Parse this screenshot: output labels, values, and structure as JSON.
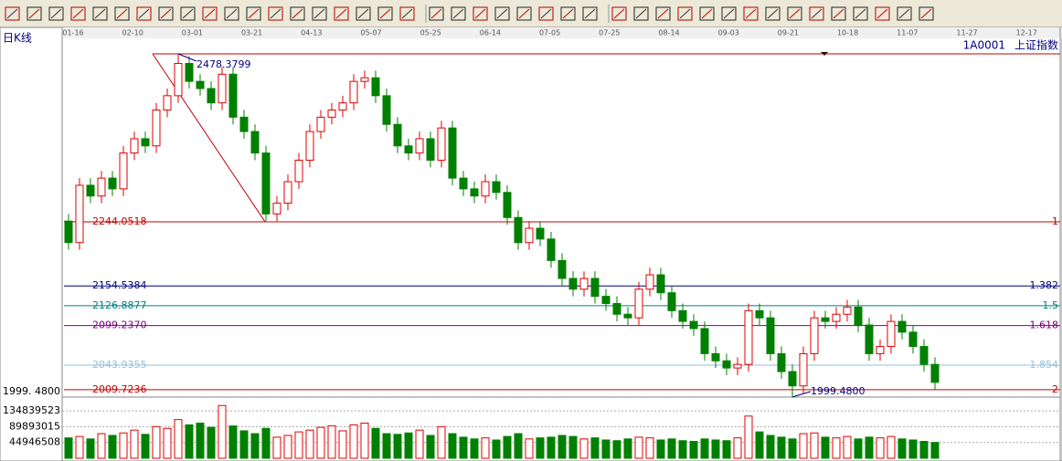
{
  "window": {
    "period": "日K线",
    "code": "1A0001",
    "name": "上证指数"
  },
  "chart_data": {
    "type": "candlestick",
    "dates": [
      "01-16",
      "02-10",
      "03-01",
      "03-21",
      "04-13",
      "05-07",
      "05-25",
      "06-14",
      "07-05",
      "07-25",
      "08-14",
      "09-03",
      "09-21",
      "10-18",
      "11-07",
      "11-27",
      "12-17"
    ],
    "up_color": "#e00000",
    "down_color": "#008000",
    "ylim": [
      1993,
      2483.5
    ],
    "yticks": [
      {
        "value": 1999.48,
        "label": "1999. 4800"
      }
    ],
    "open": [
      2245,
      2215,
      2295,
      2280,
      2305,
      2290,
      2340,
      2360,
      2350,
      2400,
      2420,
      2465,
      2440,
      2430,
      2410,
      2450,
      2390,
      2370,
      2340,
      2255,
      2270,
      2300,
      2330,
      2370,
      2390,
      2400,
      2410,
      2440,
      2445,
      2420,
      2380,
      2350,
      2340,
      2360,
      2330,
      2375,
      2305,
      2290,
      2280,
      2300,
      2285,
      2250,
      2215,
      2235,
      2220,
      2190,
      2165,
      2150,
      2165,
      2140,
      2130,
      2115,
      2110,
      2150,
      2170,
      2145,
      2120,
      2105,
      2095,
      2060,
      2050,
      2040,
      2045,
      2120,
      2110,
      2060,
      2035,
      2015,
      2060,
      2110,
      2105,
      2115,
      2125,
      2100,
      2060,
      2070,
      2105,
      2090,
      2070,
      2045
    ],
    "close": [
      2215,
      2295,
      2280,
      2305,
      2290,
      2340,
      2360,
      2350,
      2400,
      2420,
      2465,
      2440,
      2430,
      2410,
      2450,
      2390,
      2370,
      2340,
      2255,
      2270,
      2300,
      2330,
      2370,
      2390,
      2400,
      2410,
      2440,
      2445,
      2420,
      2380,
      2350,
      2340,
      2360,
      2330,
      2375,
      2305,
      2290,
      2280,
      2300,
      2285,
      2250,
      2215,
      2235,
      2220,
      2190,
      2165,
      2150,
      2165,
      2140,
      2130,
      2115,
      2110,
      2150,
      2170,
      2145,
      2120,
      2105,
      2095,
      2060,
      2050,
      2040,
      2045,
      2120,
      2110,
      2060,
      2035,
      2015,
      2060,
      2110,
      2105,
      2115,
      2125,
      2100,
      2060,
      2070,
      2105,
      2090,
      2070,
      2045,
      2020
    ],
    "high": [
      2255,
      2305,
      2305,
      2315,
      2315,
      2350,
      2370,
      2370,
      2410,
      2430,
      2478.3799,
      2475,
      2450,
      2440,
      2460,
      2460,
      2400,
      2380,
      2350,
      2280,
      2310,
      2340,
      2380,
      2400,
      2410,
      2420,
      2450,
      2455,
      2455,
      2430,
      2390,
      2360,
      2370,
      2370,
      2385,
      2385,
      2315,
      2300,
      2310,
      2310,
      2295,
      2260,
      2245,
      2245,
      2230,
      2200,
      2175,
      2175,
      2175,
      2150,
      2140,
      2125,
      2160,
      2180,
      2180,
      2155,
      2130,
      2115,
      2105,
      2070,
      2060,
      2055,
      2130,
      2130,
      2120,
      2070,
      2045,
      2070,
      2120,
      2120,
      2125,
      2135,
      2135,
      2110,
      2080,
      2115,
      2115,
      2100,
      2080,
      2055
    ],
    "low": [
      2205,
      2205,
      2270,
      2270,
      2280,
      2280,
      2330,
      2340,
      2340,
      2390,
      2410,
      2430,
      2420,
      2400,
      2400,
      2380,
      2360,
      2330,
      2245,
      2245,
      2260,
      2290,
      2320,
      2360,
      2380,
      2390,
      2400,
      2430,
      2410,
      2370,
      2340,
      2330,
      2330,
      2320,
      2320,
      2295,
      2280,
      2270,
      2270,
      2275,
      2240,
      2205,
      2205,
      2210,
      2180,
      2155,
      2140,
      2140,
      2130,
      2120,
      2105,
      2100,
      2100,
      2140,
      2135,
      2110,
      2095,
      2085,
      2050,
      2040,
      2030,
      2030,
      2035,
      2100,
      2050,
      2025,
      1999.48,
      2005,
      2050,
      2095,
      2095,
      2105,
      2090,
      2050,
      2050,
      2060,
      2080,
      2060,
      2035,
      2010
    ],
    "volume": [
      58000000,
      62000000,
      55000000,
      70000000,
      65000000,
      72000000,
      80000000,
      68000000,
      90000000,
      85000000,
      110000000,
      95000000,
      100000000,
      88000000,
      150000000,
      92000000,
      78000000,
      70000000,
      85000000,
      60000000,
      65000000,
      75000000,
      80000000,
      88000000,
      92000000,
      78000000,
      95000000,
      100000000,
      85000000,
      70000000,
      68000000,
      72000000,
      80000000,
      65000000,
      90000000,
      70000000,
      60000000,
      55000000,
      58000000,
      52000000,
      62000000,
      70000000,
      55000000,
      58000000,
      60000000,
      65000000,
      62000000,
      55000000,
      58000000,
      52000000,
      50000000,
      55000000,
      60000000,
      58000000,
      52000000,
      55000000,
      50000000,
      48000000,
      55000000,
      52000000,
      50000000,
      58000000,
      120000000,
      75000000,
      65000000,
      60000000,
      55000000,
      70000000,
      72000000,
      60000000,
      58000000,
      62000000,
      55000000,
      60000000,
      58000000,
      62000000,
      55000000,
      52000000,
      48000000,
      45000000
    ],
    "vlim": [
      0,
      161000000
    ],
    "vticks": [
      44946508,
      89893015,
      134839523
    ],
    "peak": 2478.3799,
    "trough": {
      "value": 1999.48,
      "label": "1999.4800"
    },
    "levels": [
      {
        "price": 2244.0518,
        "ratio": 1,
        "color": "#c00000"
      },
      {
        "price": 2154.5384,
        "ratio": 1.382,
        "color": "#000080"
      },
      {
        "price": 2126.8877,
        "ratio": 1.5,
        "color": "#008080"
      },
      {
        "price": {
          "value": 2099.237,
          "label": "2099.2370"
        },
        "ratio": 1.618,
        "color": "#800080"
      },
      {
        "price": 2043.9355,
        "ratio": 1.854,
        "color": "#90c0e0"
      },
      {
        "price": 2009.7236,
        "ratio": 2,
        "color": "#c00000"
      }
    ]
  }
}
